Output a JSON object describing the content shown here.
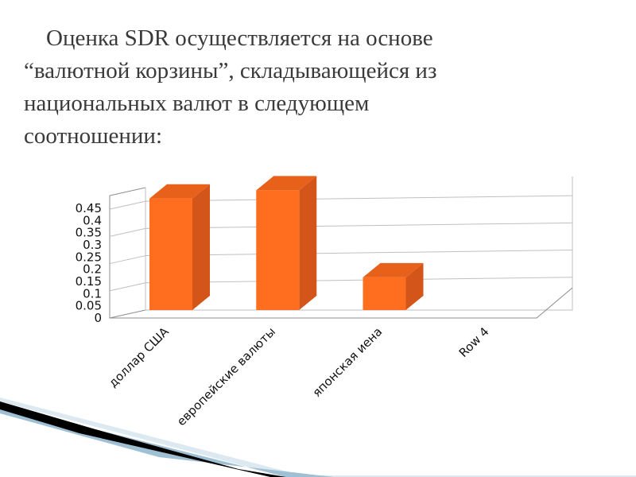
{
  "slide": {
    "title_lines": [
      "Оценка SDR осуществляется на основе",
      "“валютной корзины”, складывающейся из",
      "национальных валют в следующем",
      "соотношении:"
    ]
  },
  "chart_data": {
    "type": "bar",
    "style": "3d",
    "categories": [
      "доллар США",
      "европейские валюты",
      "японская иена",
      "Row 4"
    ],
    "series": [
      {
        "values": [
          0.41,
          0.44,
          0.12,
          0
        ]
      }
    ],
    "title": "",
    "xlabel": "",
    "ylabel": "",
    "ylim": [
      0,
      0.45
    ],
    "yticks": [
      "0",
      "0.05",
      "0.1",
      "0.15",
      "0.2",
      "0.25",
      "0.3",
      "0.35",
      "0.4",
      "0.45"
    ],
    "grid": true,
    "legend": "none",
    "colors": {
      "bar_front": "#ff6e1f",
      "bar_side": "#d4551a",
      "bar_top": "#e8611b",
      "grid": "#bfbfbf",
      "axis": "#8c8c8c"
    }
  },
  "decoration": {
    "stripe_colors": [
      "#000000",
      "#9fbfd4",
      "#dce9f1"
    ]
  }
}
